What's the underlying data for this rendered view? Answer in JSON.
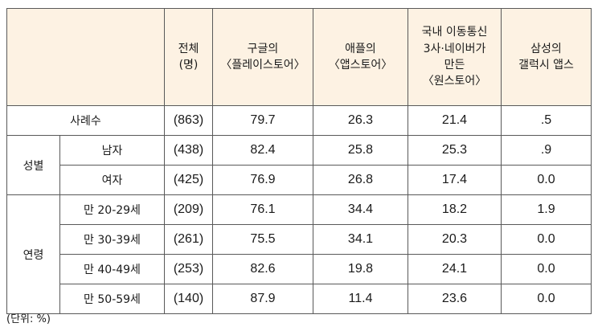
{
  "header": {
    "col_total": [
      "전체",
      "(명)"
    ],
    "col_google": [
      "구글의",
      "〈플레이스토어〉"
    ],
    "col_apple": [
      "애플의",
      "〈앱스토어〉"
    ],
    "col_onestore": [
      "국내 이동통신",
      "3사·네이버가",
      "만든",
      "〈원스토어〉"
    ],
    "col_samsung": [
      "삼성의",
      "갤럭시 앱스"
    ]
  },
  "rows": {
    "total": {
      "label": "사례수",
      "n": "(863)",
      "google": "79.7",
      "apple": "26.3",
      "onestore": "21.4",
      "samsung": ".5"
    },
    "gender_group": "성별",
    "male": {
      "label": "남자",
      "n": "(438)",
      "google": "82.4",
      "apple": "25.8",
      "onestore": "25.3",
      "samsung": ".9"
    },
    "female": {
      "label": "여자",
      "n": "(425)",
      "google": "76.9",
      "apple": "26.8",
      "onestore": "17.4",
      "samsung": "0.0"
    },
    "age_group": "연령",
    "age20": {
      "label": "만 20-29세",
      "n": "(209)",
      "google": "76.1",
      "apple": "34.4",
      "onestore": "18.2",
      "samsung": "1.9"
    },
    "age30": {
      "label": "만 30-39세",
      "n": "(261)",
      "google": "75.5",
      "apple": "34.1",
      "onestore": "20.3",
      "samsung": "0.0"
    },
    "age40": {
      "label": "만 40-49세",
      "n": "(253)",
      "google": "82.6",
      "apple": "19.8",
      "onestore": "24.1",
      "samsung": "0.0"
    },
    "age50": {
      "label": "만 50-59세",
      "n": "(140)",
      "google": "87.9",
      "apple": "11.4",
      "onestore": "23.6",
      "samsung": "0.0"
    }
  },
  "unit_note": "(단위: %)",
  "colors": {
    "header_bg": "#fdf2e3",
    "border": "#595959"
  }
}
